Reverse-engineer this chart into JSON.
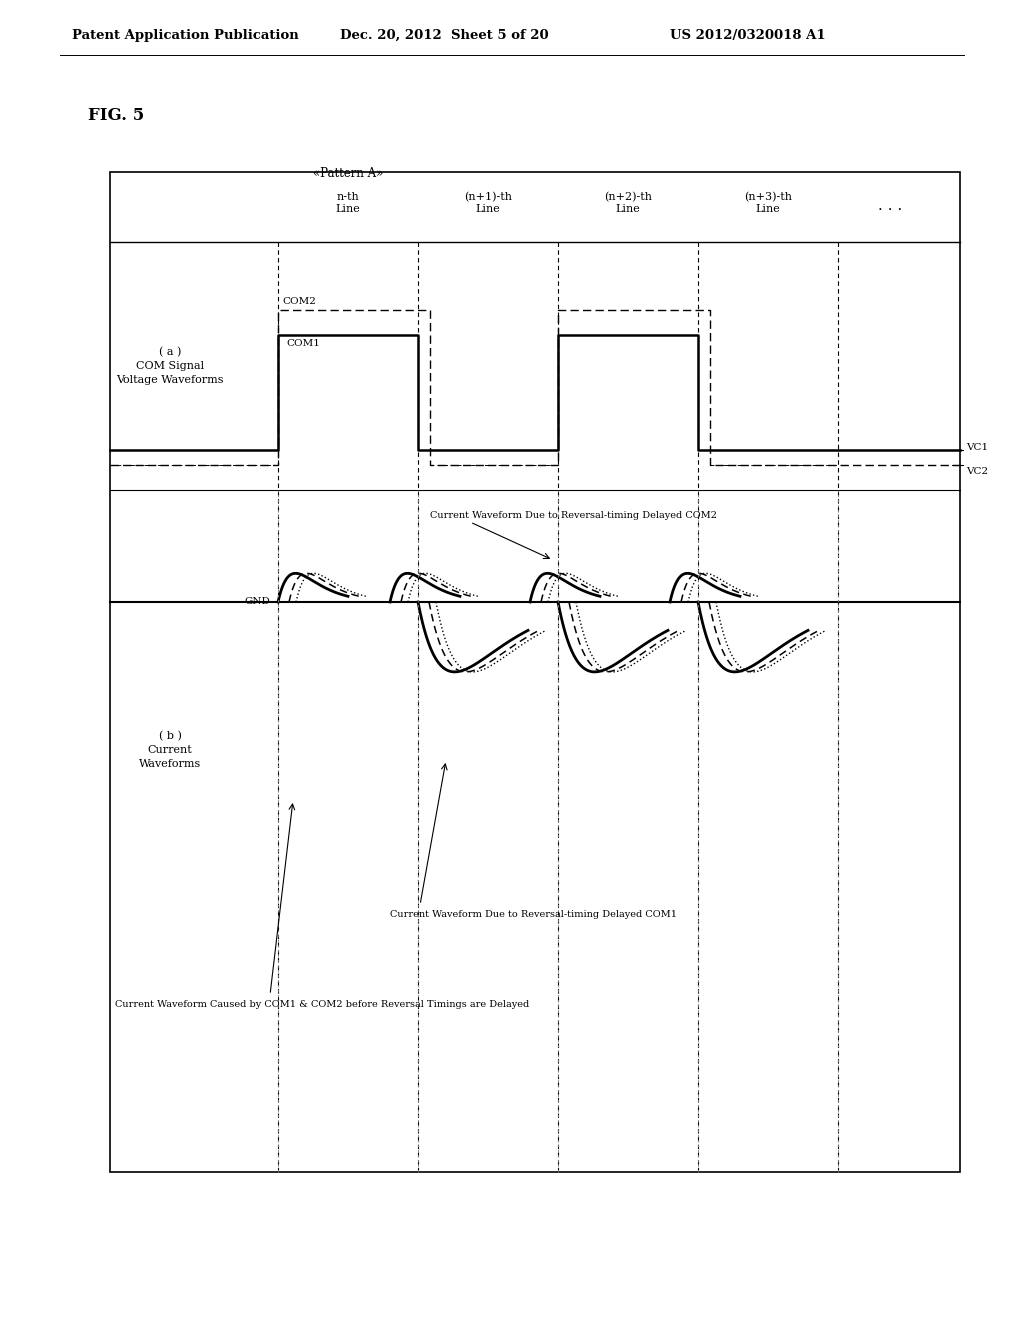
{
  "title_header": "Patent Application Publication",
  "title_date": "Dec. 20, 2012  Sheet 5 of 20",
  "title_patent": "US 2012/0320018 A1",
  "fig_label": "FIG. 5",
  "pattern_label": "«Pattern A»",
  "section_a_label": "( a )\nCOM Signal\nVoltage Waveforms",
  "section_b_label": "( b )\nCurrent\nWaveforms",
  "com1_label": "COM1",
  "com2_label": "COM2",
  "vc1_label": "VC1",
  "vc2_label": "VC2",
  "gnd_label": "GND",
  "annotation1": "Current Waveform Due to Reversal-timing Delayed COM2",
  "annotation2": "Current Waveform Due to Reversal-timing Delayed COM1",
  "annotation3": "Current Waveform Caused by COM1 & COM2 before Reversal Timings are Delayed",
  "bg_color": "#ffffff"
}
